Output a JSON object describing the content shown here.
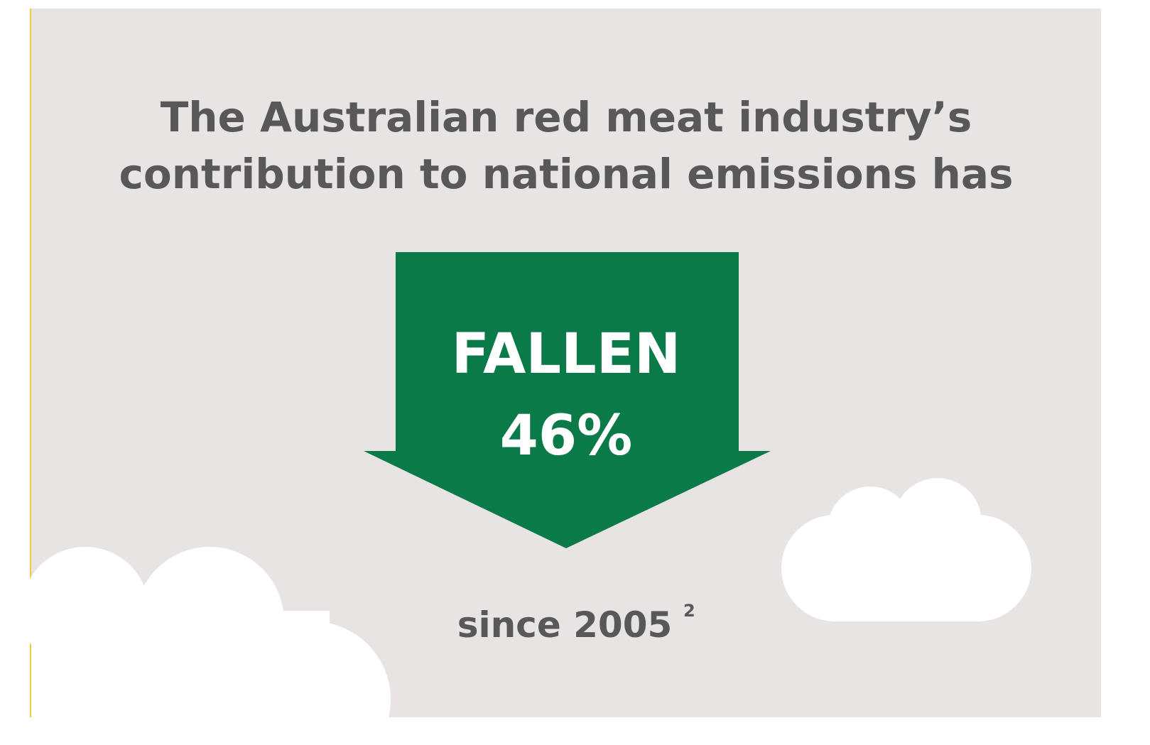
{
  "heading": {
    "lines": [
      "The Australian red meat industry’s",
      "contribution to national emissions has"
    ]
  },
  "arrow": {
    "label": "FALLEN",
    "value": "46%"
  },
  "footer": {
    "text": "since 2005",
    "note": "2"
  }
}
